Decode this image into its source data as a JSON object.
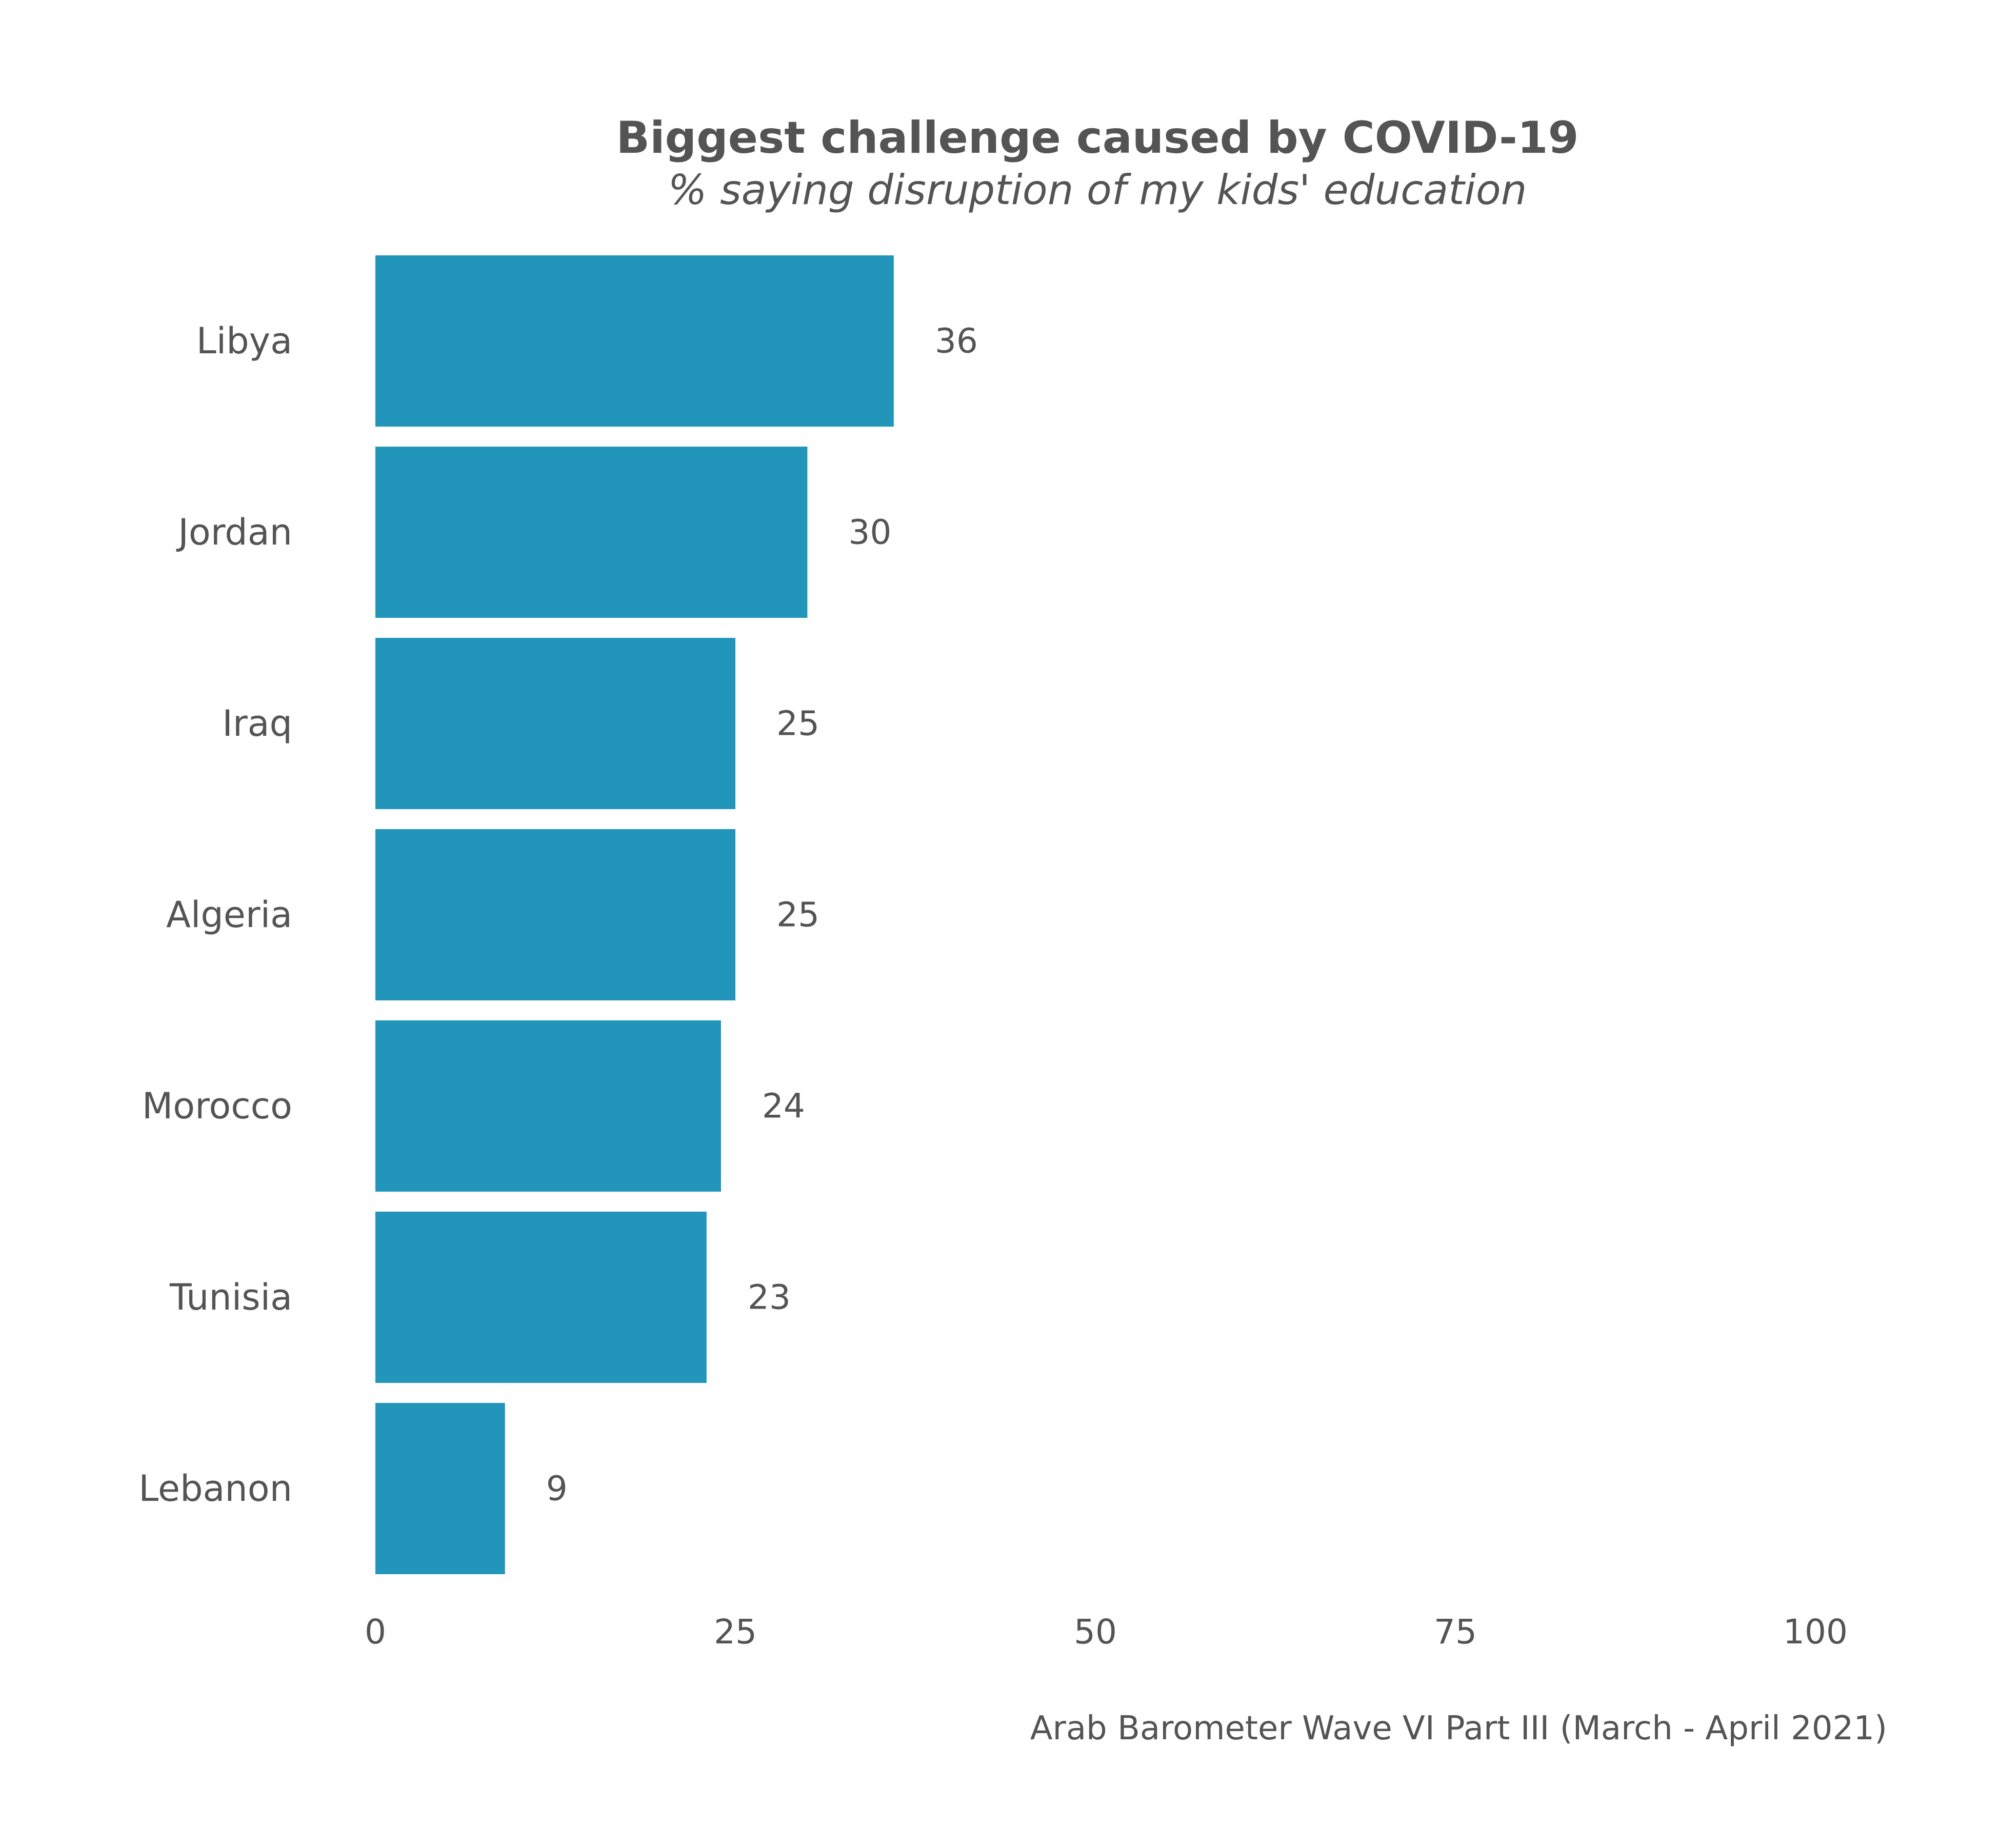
{
  "chart_data": {
    "type": "bar",
    "orientation": "horizontal",
    "title": "Biggest challenge caused by COVID-19",
    "subtitle": "% saying disruption of my kids' education",
    "categories": [
      "Libya",
      "Jordan",
      "Iraq",
      "Algeria",
      "Morocco",
      "Tunisia",
      "Lebanon"
    ],
    "values": [
      36,
      30,
      25,
      25,
      24,
      23,
      9
    ],
    "data_labels": [
      "36",
      "30",
      "25",
      "25",
      "24",
      "23",
      "9"
    ],
    "x_ticks": [
      "0",
      "25",
      "50",
      "75",
      "100"
    ],
    "xlim": [
      0,
      100
    ],
    "xlabel": "",
    "ylabel": "",
    "grid": false,
    "legend": "none",
    "bar_color": "#2196BA",
    "source": "Arab Barometer Wave VI Part III (March - April 2021)"
  }
}
